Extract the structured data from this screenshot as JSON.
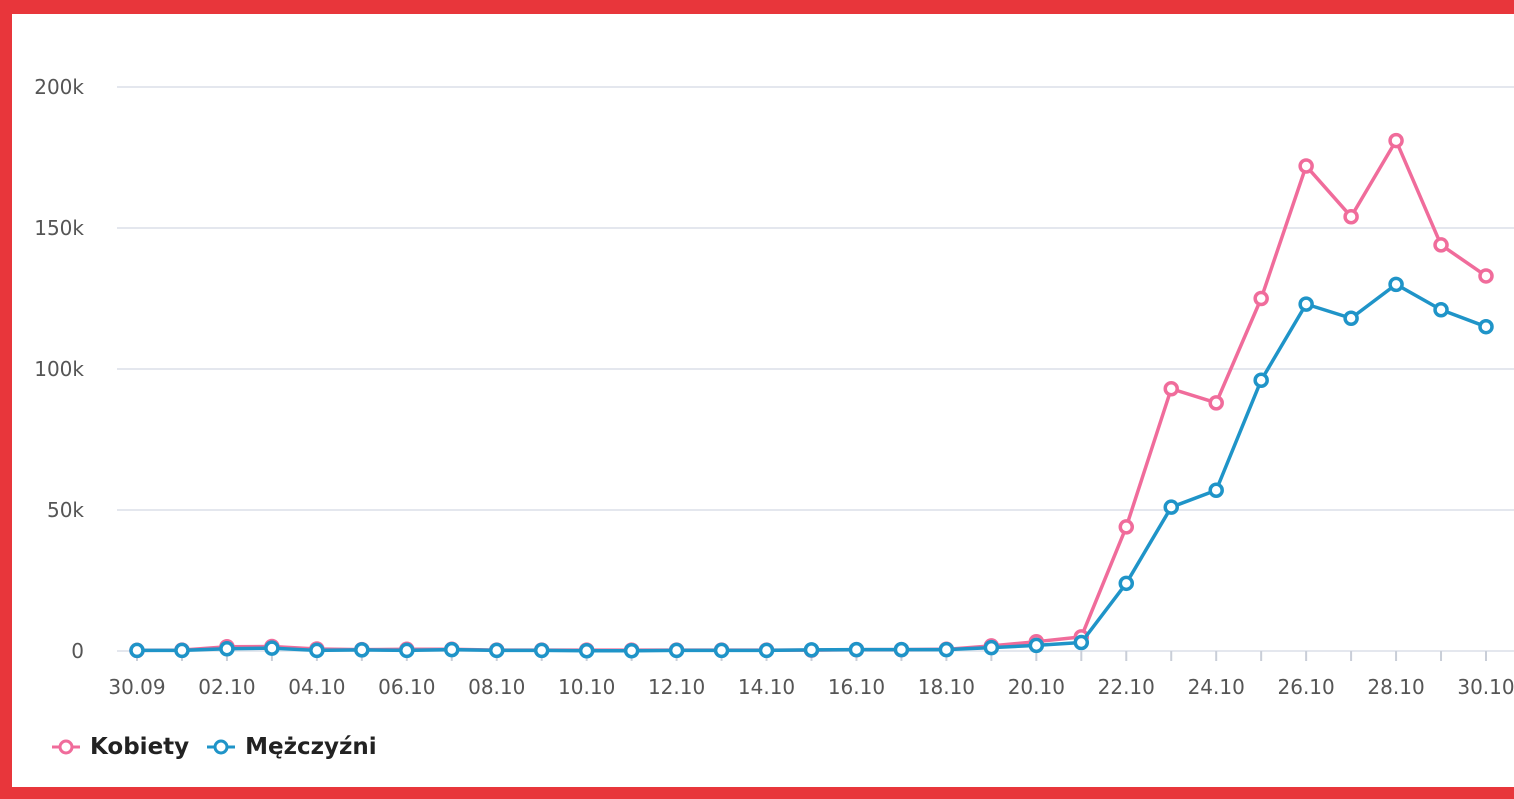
{
  "colors": {
    "frame": "#e8363b",
    "kobiety": "#f06c9b",
    "mezczyzni": "#1f94c8",
    "grid": "#e4e7ee"
  },
  "chart_data": {
    "type": "line",
    "x": [
      "30.09",
      "01.10",
      "02.10",
      "03.10",
      "04.10",
      "05.10",
      "06.10",
      "07.10",
      "08.10",
      "09.10",
      "10.10",
      "11.10",
      "12.10",
      "13.10",
      "14.10",
      "15.10",
      "16.10",
      "17.10",
      "18.10",
      "19.10",
      "20.10",
      "21.10",
      "22.10",
      "23.10",
      "24.10",
      "25.10",
      "26.10",
      "27.10",
      "28.10",
      "29.10",
      "30.10"
    ],
    "xtick_labels": [
      "30.09",
      "02.10",
      "04.10",
      "06.10",
      "08.10",
      "10.10",
      "12.10",
      "14.10",
      "16.10",
      "18.10",
      "20.10",
      "22.10",
      "24.10",
      "26.10",
      "28.10",
      "30.10"
    ],
    "yticks": [
      0,
      50000,
      100000,
      150000,
      200000
    ],
    "ytick_labels": [
      "0",
      "50k",
      "100k",
      "150k",
      "200k"
    ],
    "ylim": [
      0,
      200000
    ],
    "grid": true,
    "legend_position": "bottom-left",
    "series": [
      {
        "name": "Kobiety",
        "values": [
          200,
          300,
          1500,
          1600,
          700,
          500,
          600,
          600,
          300,
          300,
          300,
          300,
          300,
          300,
          300,
          300,
          500,
          500,
          600,
          1800,
          3300,
          5000,
          44000,
          93000,
          88000,
          125000,
          172000,
          154000,
          181000,
          144000,
          133000
        ]
      },
      {
        "name": "Mężczyźni",
        "values": [
          200,
          200,
          800,
          1000,
          200,
          400,
          200,
          500,
          200,
          200,
          100,
          100,
          200,
          200,
          200,
          400,
          500,
          500,
          500,
          1200,
          2000,
          3000,
          24000,
          51000,
          57000,
          96000,
          123000,
          118000,
          130000,
          121000,
          115000
        ]
      }
    ]
  }
}
